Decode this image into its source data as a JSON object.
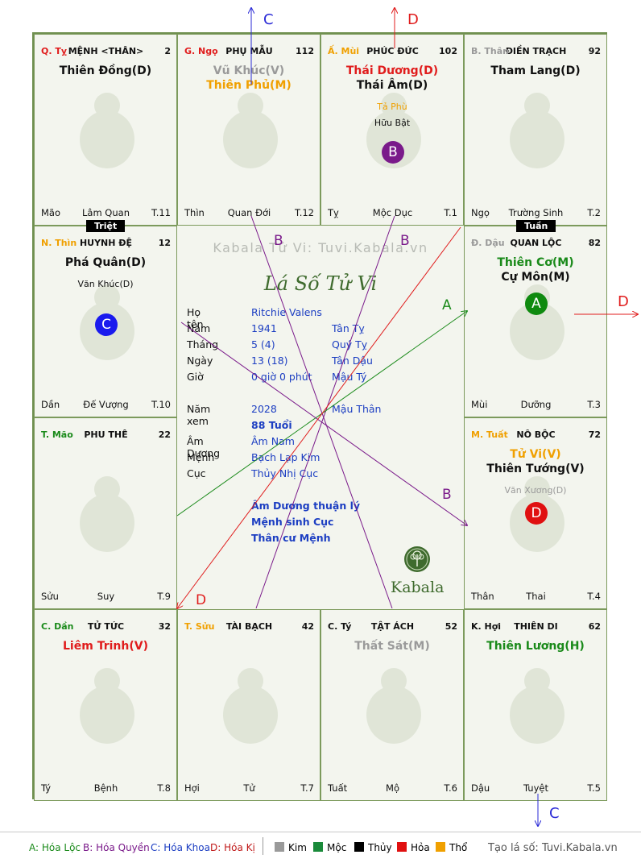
{
  "colors": {
    "red": "#e01c1c",
    "green": "#1a8a1a",
    "orange": "#f0a000",
    "gray": "#9a9a9a",
    "blue": "#1c3ec2",
    "purple": "#7a1a8a",
    "dark": "#111111"
  },
  "palaces": {
    "ty": {
      "can": "Q. Tỵ",
      "can_color": "#e01c1c",
      "name": "MỆNH <THÂN>",
      "num": "2",
      "stars": [
        {
          "t": "Thiên Đồng(D)",
          "c": "#111111"
        }
      ],
      "f1": "Mão",
      "f2": "Lâm Quan",
      "f3": "T.11",
      "animal": "snake-icon"
    },
    "ngo": {
      "can": "G. Ngọ",
      "can_color": "#e01c1c",
      "name": "PHỤ MẪU",
      "num": "112",
      "stars": [
        {
          "t": "Vũ Khúc(V)",
          "c": "#9a9a9a"
        },
        {
          "t": "Thiên Phủ(M)",
          "c": "#f0a000"
        }
      ],
      "f1": "Thìn",
      "f2": "Quan Đới",
      "f3": "T.12",
      "animal": "horse-icon"
    },
    "mui": {
      "can": "Ấ. Mùi",
      "can_color": "#f0a000",
      "name": "PHÚC ĐỨC",
      "num": "102",
      "stars": [
        {
          "t": "Thái Dương(D)",
          "c": "#e01c1c"
        },
        {
          "t": "Thái Âm(D)",
          "c": "#111111"
        }
      ],
      "minor": [
        {
          "t": "Tả Phù",
          "c": "#f0a000"
        },
        {
          "t": "Hữu Bật",
          "c": "#111111"
        }
      ],
      "badge": {
        "t": "B",
        "c": "#7a1a8a"
      },
      "f1": "Tỵ",
      "f2": "Mộc Dục",
      "f3": "T.1",
      "animal": "goat-icon"
    },
    "than": {
      "can": "B. Thân",
      "can_color": "#9a9a9a",
      "name": "ĐIỀN TRẠCH",
      "num": "92",
      "stars": [
        {
          "t": "Tham Lang(D)",
          "c": "#111111"
        }
      ],
      "f1": "Ngọ",
      "f2": "Trường Sinh",
      "f3": "T.2",
      "animal": "monkey-icon"
    },
    "thin": {
      "can": "N. Thìn",
      "can_color": "#f0a000",
      "name": "HUYNH ĐỆ",
      "num": "12",
      "stars": [
        {
          "t": "Phá Quân(D)",
          "c": "#111111"
        }
      ],
      "minor": [
        {
          "t": "Văn Khúc(D)",
          "c": "#111111"
        }
      ],
      "badge": {
        "t": "C",
        "c": "#1a1aee"
      },
      "tag": "Triệt",
      "f1": "Dần",
      "f2": "Đế Vượng",
      "f3": "T.10",
      "animal": "dragon-icon"
    },
    "dau": {
      "can": "Đ. Dậu",
      "can_color": "#9a9a9a",
      "name": "QUAN LỘC",
      "num": "82",
      "stars": [
        {
          "t": "Thiên Cơ(M)",
          "c": "#1a8a1a"
        },
        {
          "t": "Cự Môn(M)",
          "c": "#111111"
        }
      ],
      "badge": {
        "t": "A",
        "c": "#0f8a0f"
      },
      "tag": "Tuần",
      "f1": "Mùi",
      "f2": "Dưỡng",
      "f3": "T.3",
      "animal": "rooster-icon"
    },
    "mao": {
      "can": "T. Mão",
      "can_color": "#1a8a1a",
      "name": "PHU THÊ",
      "num": "22",
      "stars": [],
      "f1": "Sửu",
      "f2": "Suy",
      "f3": "T.9",
      "animal": "rabbit-icon"
    },
    "tuat": {
      "can": "M. Tuất",
      "can_color": "#f0a000",
      "name": "NÔ BỘC",
      "num": "72",
      "stars": [
        {
          "t": "Tử Vi(V)",
          "c": "#f0a000"
        },
        {
          "t": "Thiên Tướng(V)",
          "c": "#111111"
        }
      ],
      "minor": [
        {
          "t": "Văn Xương(D)",
          "c": "#9a9a9a"
        }
      ],
      "badge": {
        "t": "D",
        "c": "#e01010"
      },
      "f1": "Thân",
      "f2": "Thai",
      "f3": "T.4",
      "animal": "dog-icon"
    },
    "dan": {
      "can": "C. Dần",
      "can_color": "#1a8a1a",
      "name": "TỬ TỨC",
      "num": "32",
      "stars": [
        {
          "t": "Liêm Trinh(V)",
          "c": "#e01c1c"
        }
      ],
      "f1": "Tý",
      "f2": "Bệnh",
      "f3": "T.8",
      "animal": "tiger-icon"
    },
    "suu": {
      "can": "T. Sửu",
      "can_color": "#f0a000",
      "name": "TÀI BẠCH",
      "num": "42",
      "stars": [],
      "f1": "Hợi",
      "f2": "Tử",
      "f3": "T.7",
      "animal": "ox-icon"
    },
    "tyrat": {
      "can": "C. Tý",
      "can_color": "#111111",
      "name": "TẬT ÁCH",
      "num": "52",
      "stars": [
        {
          "t": "Thất Sát(M)",
          "c": "#9a9a9a"
        }
      ],
      "f1": "Tuất",
      "f2": "Mộ",
      "f3": "T.6",
      "animal": "rat-icon"
    },
    "hoi": {
      "can": "K. Hợi",
      "can_color": "#111111",
      "name": "THIÊN DI",
      "num": "62",
      "stars": [
        {
          "t": "Thiên Lương(H)",
          "c": "#1a8a1a"
        }
      ],
      "f1": "Dậu",
      "f2": "Tuyệt",
      "f3": "T.5",
      "animal": "pig-icon"
    }
  },
  "center": {
    "site_title": "Kabala Tử Vi: Tuvi.Kabala.vn",
    "logo_text": "Lá Số Tử Vi",
    "rows": [
      {
        "k": "Họ tên",
        "v1": "Ritchie Valens",
        "v2": ""
      },
      {
        "k": "Năm",
        "v1": "1941",
        "v2": "Tân Tỵ"
      },
      {
        "k": "Tháng",
        "v1": "5  (4)",
        "v2": "Quý Tỵ"
      },
      {
        "k": "Ngày",
        "v1": "13  (18)",
        "v2": "Tân Dậu"
      },
      {
        "k": "Giờ",
        "v1": "0 giờ 0 phút",
        "v2": "Mậu Tý"
      },
      {
        "k": "Năm xem",
        "v1": "2028",
        "v2": "Mậu Thân"
      },
      {
        "k": "",
        "v1": "88 Tuổi",
        "v2": ""
      },
      {
        "k": "Âm Dương",
        "v1": "Âm Nam",
        "v2": ""
      },
      {
        "k": "Mệnh",
        "v1": "Bạch Lạp Kim",
        "v2": ""
      },
      {
        "k": "Cục",
        "v1": "Thủy Nhị Cục",
        "v2": ""
      }
    ],
    "notes": [
      "Âm Dương thuận lý",
      "Mệnh sinh Cục",
      "Thân cư Mệnh"
    ],
    "brand": "Kabala"
  },
  "arrow_labels": {
    "c_top": "C",
    "d_top": "D",
    "b_left": "B",
    "b_right": "B",
    "a_mid": "A",
    "d_right": "D",
    "b_low": "B",
    "d_low": "D",
    "c_bottom": "C"
  },
  "legend": {
    "a": "A: Hóa Lộc",
    "b": "B: Hóa Quyền",
    "c": "C: Hóa Khoa",
    "d": "D: Hóa Kị",
    "kim": "Kim",
    "moc": "Mộc",
    "thuy": "Thủy",
    "hoa": "Hỏa",
    "tho": "Thổ",
    "site": "Tạo lá số: Tuvi.Kabala.vn"
  }
}
